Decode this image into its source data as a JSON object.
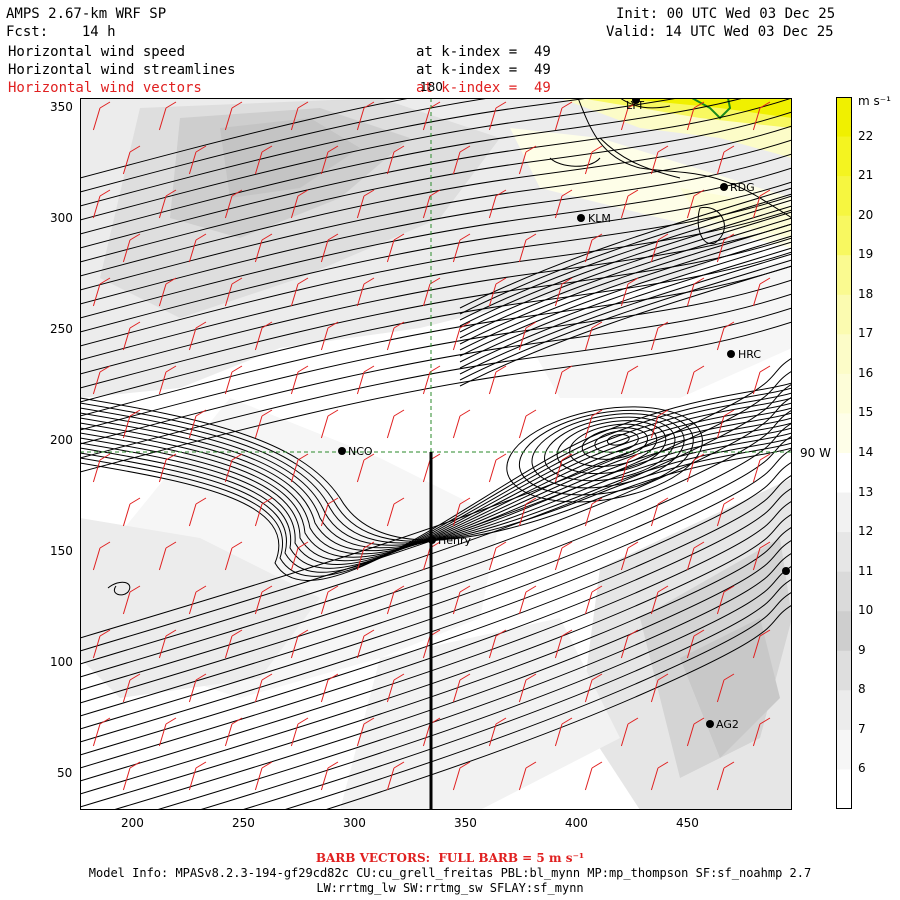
{
  "header": {
    "model": "AMPS 2.67-km WRF SP",
    "fcst": "Fcst:    14 h",
    "init": "Init: 00 UTC Wed 03 Dec 25",
    "valid": "Valid: 14 UTC Wed 03 Dec 25",
    "fields": [
      {
        "name": "Horizontal wind speed",
        "level": "at k-index =  49",
        "color": "#000000"
      },
      {
        "name": "Horizontal wind streamlines",
        "level": "at k-index =  49",
        "color": "#000000"
      },
      {
        "name": "Horizontal wind vectors",
        "level": "at k-index =  49",
        "color": "#e02020"
      }
    ]
  },
  "map": {
    "x_ticks": [
      "200",
      "250",
      "300",
      "350",
      "400",
      "450"
    ],
    "y_ticks": [
      "350",
      "300",
      "250",
      "200",
      "150",
      "100",
      "50"
    ],
    "meridian_label": "180",
    "parallel_label": "90 W",
    "stations": [
      {
        "id": "LYT",
        "label": "LYT"
      },
      {
        "id": "RDG",
        "label": "RDG"
      },
      {
        "id": "KLM",
        "label": "KLM"
      },
      {
        "id": "HRC",
        "label": "HRC"
      },
      {
        "id": "NCO",
        "label": "NCO"
      },
      {
        "id": "Henry",
        "label": "Henry"
      },
      {
        "id": "AG2",
        "label": "AG2"
      },
      {
        "id": "unnamed",
        "label": ""
      }
    ]
  },
  "colorbar": {
    "units": "m s⁻¹",
    "labels": [
      "22",
      "21",
      "20",
      "19",
      "18",
      "17",
      "16",
      "15",
      "14",
      "13",
      "12",
      "11",
      "10",
      "9",
      "8",
      "7",
      "6"
    ],
    "colors": [
      "#f0f000",
      "#f4f420",
      "#f6f640",
      "#f8f860",
      "#fafa90",
      "#fbfbb0",
      "#fcfcc8",
      "#fdfdd8",
      "#fefee8",
      "#ffffff",
      "#f2f2f2",
      "#e6e6e6",
      "#dadada",
      "#cecece",
      "#dedede",
      "#ececec",
      "#f6f6f6",
      "#ffffff"
    ]
  },
  "footer": {
    "barb": "BARB VECTORS:  FULL BARB = 5 m s⁻¹",
    "model_info": "Model Info: MPASv8.2.3-194-gf29cd82c CU:cu_grell_freitas PBL:bl_mynn MP:mp_thompson SF:sf_noahmp 2.7",
    "model_info_2": "LW:rrtmg_lw SW:rrtmg_sw SFLAY:sf_mynn"
  }
}
